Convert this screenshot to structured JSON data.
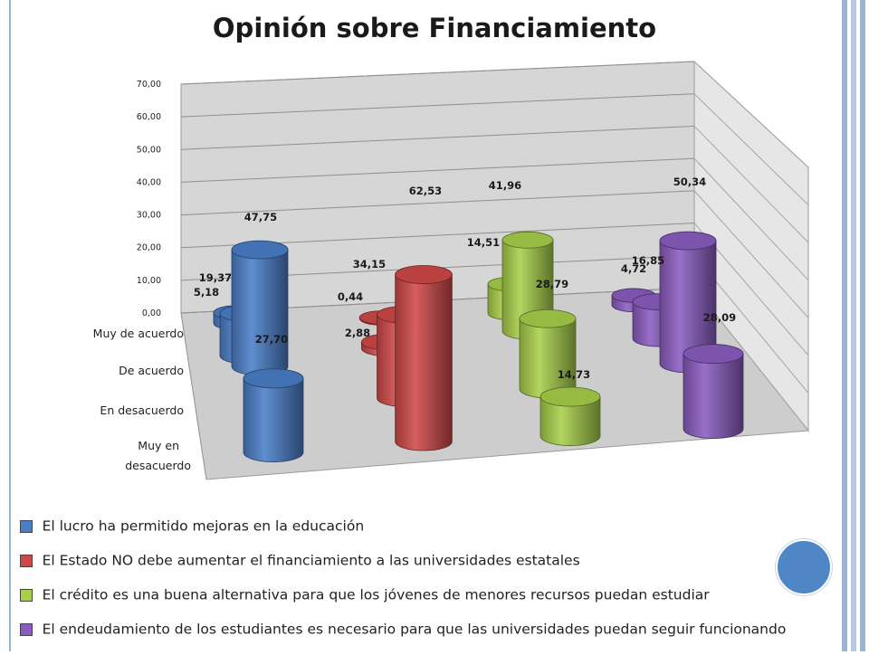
{
  "slide": {
    "title": "Opinión sobre Financiamiento"
  },
  "colors": {
    "blue": "#4a7fc8",
    "red": "#d04848",
    "green": "#a8cf4a",
    "purple": "#8a5cc0",
    "accent_circle": "#4f86c6",
    "frame": "#9db3d6"
  },
  "chart_data": {
    "type": "bar",
    "style": "3d-cylinder",
    "title": "Opinión sobre Financiamiento",
    "depth_categories": [
      "Muy de acuerdo",
      "De acuerdo",
      "En desacuerdo",
      "Muy en desacuerdo"
    ],
    "ylim": [
      0,
      70
    ],
    "yticks": [
      "0,00",
      "10,00",
      "20,00",
      "30,00",
      "40,00",
      "50,00",
      "60,00",
      "70,00"
    ],
    "grid": true,
    "legend_position": "bottom",
    "series": [
      {
        "name": "El lucro ha permitido mejoras en la educación",
        "color": "#4a7fc8",
        "values": [
          5.18,
          19.37,
          47.75,
          27.7
        ],
        "labels": [
          "5,18",
          "19,37",
          "47,75",
          "27,70"
        ]
      },
      {
        "name": "El Estado NO debe aumentar el financiamiento a las universidades estatales",
        "color": "#d04848",
        "values": [
          0.44,
          2.88,
          34.15,
          62.53
        ],
        "labels": [
          "0,44",
          "2,88",
          "34,15",
          "62,53"
        ]
      },
      {
        "name": "El crédito es una buena alternativa para que los jóvenes de menores recursos puedan estudiar",
        "color": "#a8cf4a",
        "values": [
          14.51,
          41.96,
          28.79,
          14.73
        ],
        "labels": [
          "14,51",
          "41,96",
          "28,79",
          "14,73"
        ]
      },
      {
        "name": "El endeudamiento de los estudiantes es necesario para que las universidades puedan seguir funcionando",
        "color": "#8a5cc0",
        "values": [
          4.72,
          16.85,
          50.34,
          28.09
        ],
        "labels": [
          "4,72",
          "16,85",
          "50,34",
          "28,09"
        ]
      }
    ]
  }
}
